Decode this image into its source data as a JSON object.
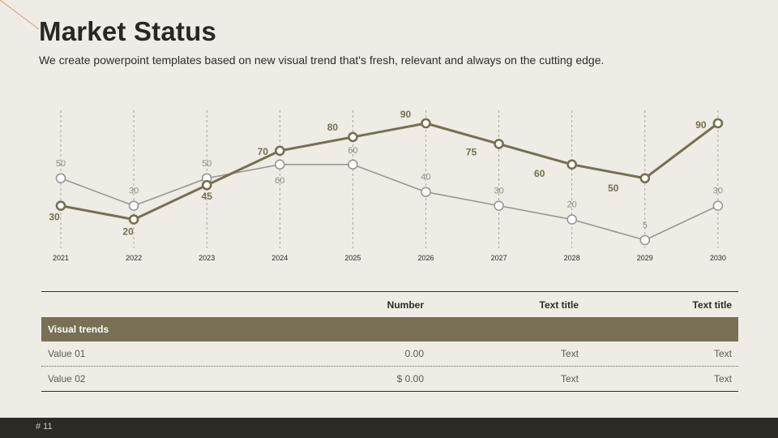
{
  "slide": {
    "title": "Market Status",
    "subtitle": "We create powerpoint templates based on new visual trend that's fresh, relevant and always on the cutting edge.",
    "page_number": "# 11"
  },
  "colors": {
    "primary": "#776f52",
    "secondary": "#9a9790",
    "band": "#786f55",
    "footer": "#2b2a25",
    "background": "#efebe5"
  },
  "chart_data": {
    "type": "line",
    "x": [
      "2021",
      "2022",
      "2023",
      "2024",
      "2025",
      "2026",
      "2027",
      "2028",
      "2029",
      "2030"
    ],
    "ylim": [
      5,
      90
    ],
    "grid": "vertical dashed",
    "series": [
      {
        "values": [
          30,
          20,
          45,
          70,
          80,
          90,
          75,
          60,
          50,
          90
        ]
      },
      {
        "values": [
          50,
          30,
          50,
          60,
          60,
          40,
          30,
          20,
          5,
          30
        ]
      }
    ]
  },
  "table": {
    "headers": [
      "",
      "Number",
      "Text title",
      "Text title"
    ],
    "band_label": "Visual trends",
    "rows": [
      [
        "Value 01",
        "0.00",
        "Text",
        "Text"
      ],
      [
        "Value 02",
        "$ 0.00",
        "Text",
        "Text"
      ]
    ]
  }
}
